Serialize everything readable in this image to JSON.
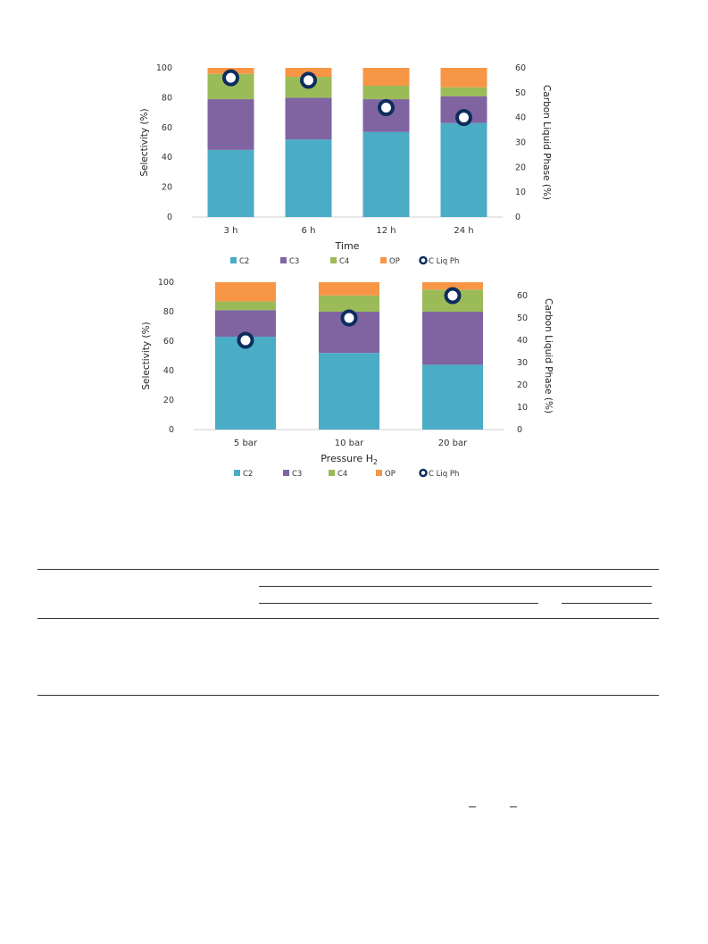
{
  "colors": {
    "C2": "#4bacc6",
    "C3": "#8064a2",
    "C4": "#9bbb59",
    "OP": "#f79646",
    "marker": "#0d2d5e"
  },
  "chart_data": [
    {
      "type": "bar",
      "stacked": true,
      "categories": [
        "3 h",
        "6 h",
        "12 h",
        "24 h"
      ],
      "series": [
        {
          "name": "C2",
          "values": [
            45,
            52,
            57,
            63
          ]
        },
        {
          "name": "C3",
          "values": [
            34,
            28,
            22,
            18
          ]
        },
        {
          "name": "C4",
          "values": [
            17,
            14,
            9,
            6
          ]
        },
        {
          "name": "OP",
          "values": [
            4,
            6,
            12,
            13
          ]
        }
      ],
      "secondary": {
        "name": "C Liq Ph",
        "values": [
          56,
          55,
          44,
          40
        ]
      },
      "xlabel": "Time",
      "ylabel": "Selectivity (%)",
      "y2label": "Carbon Liquid Phase (%)",
      "ylim": [
        0,
        100
      ],
      "y2lim": [
        0,
        60
      ],
      "yticks": [
        "0",
        "20",
        "40",
        "60",
        "80",
        "100"
      ],
      "y2ticks": [
        "0",
        "10",
        "20",
        "30",
        "40",
        "50",
        "60"
      ],
      "legend_position": "bottom",
      "legend": [
        "C2",
        "C3",
        "C4",
        "OP",
        "C Liq Ph"
      ]
    },
    {
      "type": "bar",
      "stacked": true,
      "categories": [
        "5 bar",
        "10 bar",
        "20 bar"
      ],
      "series": [
        {
          "name": "C2",
          "values": [
            63,
            52,
            44
          ]
        },
        {
          "name": "C3",
          "values": [
            18,
            28,
            36
          ]
        },
        {
          "name": "C4",
          "values": [
            6,
            11,
            15
          ]
        },
        {
          "name": "OP",
          "values": [
            13,
            9,
            5
          ]
        }
      ],
      "secondary": {
        "name": "C Liq Ph",
        "values": [
          40,
          50,
          60
        ]
      },
      "xlabel": "Pressure H",
      "xlabel_sub": "2",
      "ylabel": "Selectivity (%)",
      "y2label": "Carbon Liquid Phase (%)",
      "ylim": [
        0,
        100
      ],
      "y2lim": [
        0,
        66
      ],
      "yticks": [
        "0",
        "20",
        "40",
        "60",
        "80",
        "100"
      ],
      "y2ticks": [
        "0",
        "10",
        "20",
        "30",
        "40",
        "50",
        "60"
      ],
      "legend_position": "bottom",
      "legend": [
        "C2",
        "C3",
        "C4",
        "OP",
        "C Liq Ph"
      ]
    }
  ]
}
